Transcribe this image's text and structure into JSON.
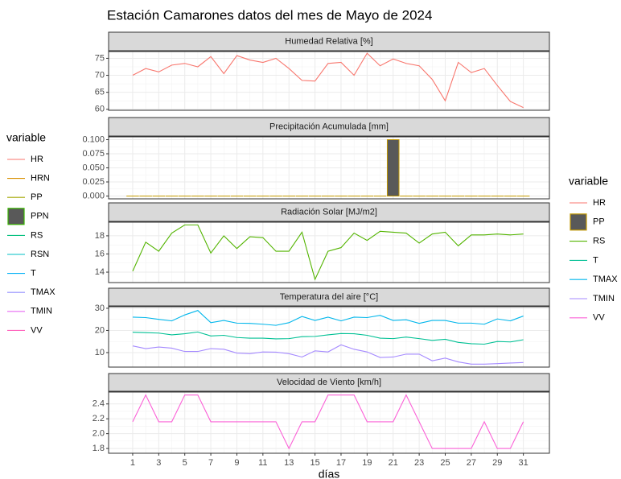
{
  "title": "Estación Camarones datos del mes de Mayo de 2024",
  "xlabel": "días",
  "legends": [
    {
      "title": "variable",
      "entries": [
        {
          "name": "HR",
          "key": "line",
          "color": "#F8766D"
        },
        {
          "name": "HRN",
          "key": "line",
          "color": "#D89000"
        },
        {
          "name": "PP",
          "key": "line",
          "color": "#A3A500"
        },
        {
          "name": "PPN",
          "key": "box",
          "color": "#39B600",
          "fill": "#595959"
        },
        {
          "name": "RS",
          "key": "line",
          "color": "#00BF7D"
        },
        {
          "name": "RSN",
          "key": "line",
          "color": "#00BFC4"
        },
        {
          "name": "T",
          "key": "line",
          "color": "#00B0F6"
        },
        {
          "name": "TMAX",
          "key": "line",
          "color": "#9590FF"
        },
        {
          "name": "TMIN",
          "key": "line",
          "color": "#E76BF3"
        },
        {
          "name": "VV",
          "key": "line",
          "color": "#FF62BC"
        }
      ]
    },
    {
      "title": "variable",
      "entries": [
        {
          "name": "HR",
          "key": "line",
          "color": "#F8766D"
        },
        {
          "name": "PP",
          "key": "box",
          "color": "#C49A00",
          "fill": "#595959"
        },
        {
          "name": "RS",
          "key": "line",
          "color": "#53B400"
        },
        {
          "name": "T",
          "key": "line",
          "color": "#00C094"
        },
        {
          "name": "TMAX",
          "key": "line",
          "color": "#00B6EB"
        },
        {
          "name": "TMIN",
          "key": "line",
          "color": "#A58AFF"
        },
        {
          "name": "VV",
          "key": "line",
          "color": "#FB61D7"
        }
      ]
    }
  ],
  "chart_data": [
    {
      "type": "line",
      "title": "Humedad Relativa [%]",
      "x": [
        1,
        2,
        3,
        4,
        5,
        6,
        7,
        8,
        9,
        10,
        11,
        12,
        13,
        14,
        15,
        16,
        17,
        18,
        19,
        20,
        21,
        22,
        23,
        24,
        25,
        26,
        27,
        28,
        29,
        30,
        31
      ],
      "series": [
        {
          "color": "#F8766D",
          "values": [
            70,
            72,
            71,
            73,
            73.5,
            72.5,
            75.5,
            70.5,
            75.8,
            74.5,
            73.8,
            75,
            72,
            68.5,
            68.3,
            73.5,
            73.8,
            70,
            76.5,
            72.8,
            74.8,
            73.5,
            72.8,
            68.8,
            62.5,
            73.8,
            70.8,
            72,
            67,
            62.3,
            60.5
          ]
        }
      ],
      "xlim": [
        -0.85,
        33
      ],
      "xticks": [
        1,
        3,
        5,
        7,
        9,
        11,
        13,
        15,
        17,
        19,
        21,
        23,
        25,
        27,
        29,
        31
      ],
      "ylim": [
        59.7,
        77
      ],
      "yticks": [
        60,
        65,
        70,
        75
      ],
      "grid": true
    },
    {
      "type": "bar",
      "title": "Precipitación Acumulada [mm]",
      "x": [
        1,
        2,
        3,
        4,
        5,
        6,
        7,
        8,
        9,
        10,
        11,
        12,
        13,
        14,
        15,
        16,
        17,
        18,
        19,
        20,
        21,
        22,
        23,
        24,
        25,
        26,
        27,
        28,
        29,
        30,
        31
      ],
      "series": [
        {
          "color": "#C49A00",
          "fill": "#595959",
          "values": [
            0,
            0,
            0,
            0,
            0,
            0,
            0,
            0,
            0,
            0,
            0,
            0,
            0,
            0,
            0,
            0,
            0,
            0,
            0,
            0,
            0.1,
            0,
            0,
            0,
            0,
            0,
            0,
            0,
            0,
            0,
            0
          ]
        }
      ],
      "xlim": [
        -0.85,
        33
      ],
      "xticks": [
        1,
        3,
        5,
        7,
        9,
        11,
        13,
        15,
        17,
        19,
        21,
        23,
        25,
        27,
        29,
        31
      ],
      "ylim": [
        -0.005,
        0.105
      ],
      "yticks": [
        {
          "value": 0,
          "label": "0.000"
        },
        {
          "value": 0.025,
          "label": "0.025"
        },
        {
          "value": 0.05,
          "label": "0.050"
        },
        {
          "value": 0.075,
          "label": "0.075"
        },
        {
          "value": 0.1,
          "label": "0.100"
        }
      ],
      "grid": true
    },
    {
      "type": "line",
      "title": "Radiación Solar [MJ/m2]",
      "x": [
        1,
        2,
        3,
        4,
        5,
        6,
        7,
        8,
        9,
        10,
        11,
        12,
        13,
        14,
        15,
        16,
        17,
        18,
        19,
        20,
        21,
        22,
        23,
        24,
        25,
        26,
        27,
        28,
        29,
        30,
        31
      ],
      "series": [
        {
          "color": "#53B400",
          "values": [
            14.1,
            17.3,
            16.3,
            18.3,
            19.2,
            19.2,
            16.1,
            18,
            16.6,
            17.9,
            17.8,
            16.3,
            16.3,
            18.4,
            13.2,
            16.3,
            16.7,
            18.3,
            17.5,
            18.5,
            18.4,
            18.3,
            17.2,
            18.2,
            18.4,
            16.9,
            18.1,
            18.1,
            18.2,
            18.1,
            18.2
          ]
        }
      ],
      "xlim": [
        -0.85,
        33
      ],
      "xticks": [
        1,
        3,
        5,
        7,
        9,
        11,
        13,
        15,
        17,
        19,
        21,
        23,
        25,
        27,
        29,
        31
      ],
      "ylim": [
        12.85,
        19.5
      ],
      "yticks": [
        14,
        16,
        18
      ],
      "grid": true
    },
    {
      "type": "line",
      "title": "Temperatura del aire [°C]",
      "x": [
        1,
        2,
        3,
        4,
        5,
        6,
        7,
        8,
        9,
        10,
        11,
        12,
        13,
        14,
        15,
        16,
        17,
        18,
        19,
        20,
        21,
        22,
        23,
        24,
        25,
        26,
        27,
        28,
        29,
        30,
        31
      ],
      "series": [
        {
          "color": "#00B6EB",
          "values": [
            26,
            25.8,
            25,
            24.3,
            27,
            29,
            23.5,
            24.5,
            23.3,
            23.2,
            22.8,
            22.3,
            23.5,
            26.3,
            24.5,
            26,
            24.3,
            26,
            25.8,
            26.8,
            24.5,
            24.8,
            23.2,
            24.5,
            24.5,
            23.3,
            23.3,
            22.8,
            25.2,
            24.3,
            26.5
          ]
        },
        {
          "color": "#00C094",
          "values": [
            19.2,
            19,
            18.8,
            18,
            18.5,
            19.3,
            17.5,
            17.8,
            16.8,
            16.5,
            16.5,
            16.2,
            16.3,
            17.2,
            17.3,
            18,
            18.6,
            18.5,
            17.8,
            16.5,
            16.3,
            17,
            16.3,
            15.5,
            16,
            14.6,
            14,
            13.8,
            15,
            14.8,
            15.8
          ]
        },
        {
          "color": "#A58AFF",
          "values": [
            13,
            11.8,
            12.5,
            12,
            10.5,
            10.5,
            11.8,
            11.5,
            9.8,
            9.5,
            10.3,
            10.2,
            9.5,
            8,
            10.8,
            10.3,
            13.5,
            11.5,
            10.3,
            7.8,
            8,
            9.3,
            9.3,
            6.3,
            7.5,
            5.8,
            4.8,
            4.8,
            5,
            5.3,
            5.5
          ]
        }
      ],
      "xlim": [
        -0.85,
        33
      ],
      "xticks": [
        1,
        3,
        5,
        7,
        9,
        11,
        13,
        15,
        17,
        19,
        21,
        23,
        25,
        27,
        29,
        31
      ],
      "ylim": [
        3.45,
        30.7
      ],
      "yticks": [
        10,
        20,
        30
      ],
      "grid": true
    },
    {
      "type": "line",
      "title": "Velocidad de Viento [km/h]",
      "x": [
        1,
        2,
        3,
        4,
        5,
        6,
        7,
        8,
        9,
        10,
        11,
        12,
        13,
        14,
        15,
        16,
        17,
        18,
        19,
        20,
        21,
        22,
        23,
        24,
        25,
        26,
        27,
        28,
        29,
        30,
        31
      ],
      "series": [
        {
          "color": "#FB61D7",
          "values": [
            2.16,
            2.52,
            2.16,
            2.16,
            2.52,
            2.52,
            2.16,
            2.16,
            2.16,
            2.16,
            2.16,
            2.16,
            1.8,
            2.16,
            2.16,
            2.52,
            2.52,
            2.52,
            2.16,
            2.16,
            2.16,
            2.52,
            2.16,
            1.8,
            1.8,
            1.8,
            1.8,
            2.16,
            1.8,
            1.8,
            2.16
          ]
        }
      ],
      "xlim": [
        -0.85,
        33
      ],
      "xticks": [
        1,
        3,
        5,
        7,
        9,
        11,
        13,
        15,
        17,
        19,
        21,
        23,
        25,
        27,
        29,
        31
      ],
      "ylim": [
        1.736,
        2.56
      ],
      "yticks": [
        1.8,
        {
          "value": 2,
          "label": "2.0"
        },
        2.2,
        2.4
      ],
      "grid": true
    }
  ]
}
